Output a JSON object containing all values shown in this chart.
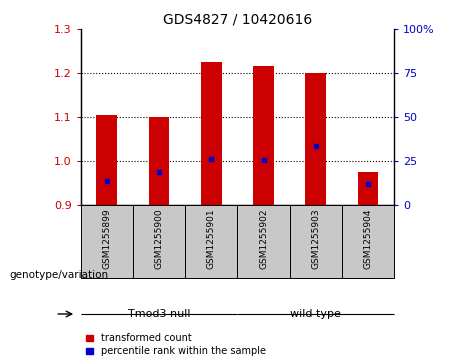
{
  "title": "GDS4827 / 10420616",
  "samples": [
    "GSM1255899",
    "GSM1255900",
    "GSM1255901",
    "GSM1255902",
    "GSM1255903",
    "GSM1255904"
  ],
  "transformed_counts": [
    1.105,
    1.1,
    1.225,
    1.215,
    1.2,
    0.975
  ],
  "percentile_ranks": [
    0.955,
    0.975,
    1.005,
    1.003,
    1.035,
    0.947
  ],
  "ylim_left": [
    0.9,
    1.3
  ],
  "yticks_left": [
    0.9,
    1.0,
    1.1,
    1.2,
    1.3
  ],
  "ytick_labels_right": [
    "0",
    "25",
    "50",
    "75",
    "100%"
  ],
  "yticks_right_vals": [
    0,
    25,
    50,
    75,
    100
  ],
  "group_labels": [
    "Tmod3 null",
    "wild type"
  ],
  "group_ranges": [
    [
      0,
      2
    ],
    [
      3,
      5
    ]
  ],
  "group_color": "#6FDF6F",
  "group_label_prefix": "genotype/variation",
  "bar_color": "#CC0000",
  "dot_color": "#0000CC",
  "baseline": 0.9,
  "bg_color": "#FFFFFF",
  "sample_box_color": "#C8C8C8",
  "tick_color_left": "#CC0000",
  "tick_color_right": "#0000CC",
  "legend_items": [
    {
      "label": "transformed count",
      "color": "#CC0000"
    },
    {
      "label": "percentile rank within the sample",
      "color": "#0000CC"
    }
  ],
  "bar_width": 0.4,
  "title_fontsize": 10,
  "tick_fontsize": 8,
  "label_fontsize": 8
}
